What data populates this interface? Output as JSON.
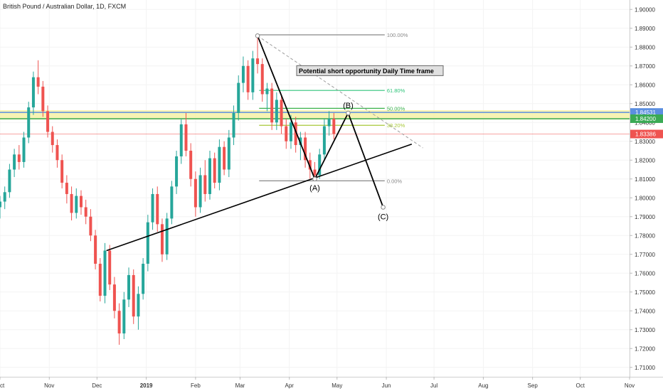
{
  "header": {
    "title": "British Pound / Australian Dollar, 1D, FXCM"
  },
  "chart_data": {
    "type": "candlestick",
    "title": "British Pound / Australian Dollar, 1D, FXCM",
    "ylim": [
      1.705,
      1.905
    ],
    "y_ticks": [
      "1.90000",
      "1.89000",
      "1.88000",
      "1.87000",
      "1.86000",
      "1.85000",
      "1.84000",
      "1.83000",
      "1.82000",
      "1.81000",
      "1.80000",
      "1.79000",
      "1.78000",
      "1.77000",
      "1.76000",
      "1.75000",
      "1.74000",
      "1.73000",
      "1.72000",
      "1.71000"
    ],
    "x_ticks": [
      "Oct",
      "Nov",
      "Dec",
      "2019",
      "Feb",
      "Mar",
      "Apr",
      "May",
      "Jun",
      "Jul",
      "Aug",
      "Sep",
      "Oct",
      "Nov"
    ],
    "x_tick_dates": [
      "2018-10-01",
      "2018-11-01",
      "2018-12-01",
      "2019-01-01",
      "2019-02-01",
      "2019-03-01",
      "2019-04-01",
      "2019-05-01",
      "2019-06-01",
      "2019-07-01",
      "2019-08-01",
      "2019-09-01",
      "2019-10-01",
      "2019-11-01"
    ],
    "xlim": [
      "2018-10-01",
      "2019-11-01"
    ],
    "price_tags": [
      {
        "value": "1.84531",
        "price": 1.84531,
        "color": "#5b8fe0"
      },
      {
        "value": "1.84200",
        "price": 1.842,
        "color": "#3aaa55"
      },
      {
        "value": "1.83386",
        "price": 1.83386,
        "color": "#ef5350"
      }
    ],
    "zones": [
      {
        "price_from": 1.8415,
        "price_to": 1.8465,
        "color": "#f6f1a6"
      },
      {
        "price": 1.84531,
        "color": "#5b8fe0"
      },
      {
        "price": 1.842,
        "color": "#3aaa55"
      }
    ],
    "current_price_line": {
      "price": 1.83386,
      "color": "#ef5350"
    },
    "fibonacci": {
      "from_date": "2019-03-13",
      "to_date": "2019-05-31",
      "levels": [
        {
          "label": "100.00%",
          "price": 1.8865,
          "color": "#888888"
        },
        {
          "label": "61.80%",
          "price": 1.857,
          "color": "#2fc47a"
        },
        {
          "label": "50.00%",
          "price": 1.8475,
          "color": "#39b14a"
        },
        {
          "label": "38.20%",
          "price": 1.8385,
          "color": "#a8c838"
        },
        {
          "label": "0.00%",
          "price": 1.809,
          "color": "#888888"
        }
      ]
    },
    "abc_pattern": [
      {
        "date": "2019-03-12",
        "price": 1.886,
        "label": ""
      },
      {
        "date": "2019-04-17",
        "price": 1.81,
        "label": "(A)"
      },
      {
        "date": "2019-05-08",
        "price": 1.845,
        "label": "(B)"
      },
      {
        "date": "2019-05-30",
        "price": 1.795,
        "label": "(C)"
      }
    ],
    "trendline": {
      "from": {
        "date": "2018-12-07",
        "price": 1.772
      },
      "to": {
        "date": "2019-06-17",
        "price": 1.8285
      }
    },
    "projection_line": {
      "from": {
        "date": "2019-03-12",
        "price": 1.886
      },
      "to": {
        "date": "2019-06-24",
        "price": 1.8265
      }
    },
    "annotation": "Potential short opportunity Daily Time frame",
    "candles": [
      {
        "date": "2018-10-01",
        "o": 1.795,
        "h": 1.801,
        "l": 1.789,
        "c": 1.798
      },
      {
        "date": "2018-10-04",
        "o": 1.798,
        "h": 1.806,
        "l": 1.794,
        "c": 1.803
      },
      {
        "date": "2018-10-07",
        "o": 1.803,
        "h": 1.818,
        "l": 1.8,
        "c": 1.815
      },
      {
        "date": "2018-10-10",
        "o": 1.815,
        "h": 1.826,
        "l": 1.811,
        "c": 1.823
      },
      {
        "date": "2018-10-13",
        "o": 1.823,
        "h": 1.828,
        "l": 1.815,
        "c": 1.819
      },
      {
        "date": "2018-10-16",
        "o": 1.819,
        "h": 1.835,
        "l": 1.816,
        "c": 1.832
      },
      {
        "date": "2018-10-19",
        "o": 1.832,
        "h": 1.851,
        "l": 1.829,
        "c": 1.848
      },
      {
        "date": "2018-10-22",
        "o": 1.848,
        "h": 1.867,
        "l": 1.844,
        "c": 1.864
      },
      {
        "date": "2018-10-25",
        "o": 1.864,
        "h": 1.873,
        "l": 1.855,
        "c": 1.859
      },
      {
        "date": "2018-10-28",
        "o": 1.859,
        "h": 1.862,
        "l": 1.843,
        "c": 1.846
      },
      {
        "date": "2018-10-31",
        "o": 1.846,
        "h": 1.849,
        "l": 1.832,
        "c": 1.835
      },
      {
        "date": "2018-11-03",
        "o": 1.835,
        "h": 1.838,
        "l": 1.824,
        "c": 1.828
      },
      {
        "date": "2018-11-06",
        "o": 1.828,
        "h": 1.831,
        "l": 1.816,
        "c": 1.82
      },
      {
        "date": "2018-11-09",
        "o": 1.82,
        "h": 1.823,
        "l": 1.805,
        "c": 1.808
      },
      {
        "date": "2018-11-12",
        "o": 1.808,
        "h": 1.812,
        "l": 1.797,
        "c": 1.802
      },
      {
        "date": "2018-11-15",
        "o": 1.802,
        "h": 1.806,
        "l": 1.788,
        "c": 1.792
      },
      {
        "date": "2018-11-18",
        "o": 1.792,
        "h": 1.805,
        "l": 1.789,
        "c": 1.801
      },
      {
        "date": "2018-11-21",
        "o": 1.801,
        "h": 1.804,
        "l": 1.791,
        "c": 1.795
      },
      {
        "date": "2018-11-24",
        "o": 1.795,
        "h": 1.799,
        "l": 1.786,
        "c": 1.79
      },
      {
        "date": "2018-11-27",
        "o": 1.79,
        "h": 1.794,
        "l": 1.777,
        "c": 1.78
      },
      {
        "date": "2018-11-30",
        "o": 1.78,
        "h": 1.783,
        "l": 1.762,
        "c": 1.765
      },
      {
        "date": "2018-12-03",
        "o": 1.765,
        "h": 1.768,
        "l": 1.745,
        "c": 1.748
      },
      {
        "date": "2018-12-06",
        "o": 1.748,
        "h": 1.776,
        "l": 1.744,
        "c": 1.772
      },
      {
        "date": "2018-12-09",
        "o": 1.772,
        "h": 1.775,
        "l": 1.751,
        "c": 1.754
      },
      {
        "date": "2018-12-12",
        "o": 1.754,
        "h": 1.758,
        "l": 1.736,
        "c": 1.74
      },
      {
        "date": "2018-12-15",
        "o": 1.74,
        "h": 1.744,
        "l": 1.722,
        "c": 1.728
      },
      {
        "date": "2018-12-18",
        "o": 1.728,
        "h": 1.75,
        "l": 1.725,
        "c": 1.746
      },
      {
        "date": "2018-12-21",
        "o": 1.746,
        "h": 1.763,
        "l": 1.742,
        "c": 1.759
      },
      {
        "date": "2018-12-24",
        "o": 1.759,
        "h": 1.762,
        "l": 1.733,
        "c": 1.737
      },
      {
        "date": "2018-12-27",
        "o": 1.737,
        "h": 1.753,
        "l": 1.73,
        "c": 1.749
      },
      {
        "date": "2018-12-30",
        "o": 1.749,
        "h": 1.768,
        "l": 1.746,
        "c": 1.765
      },
      {
        "date": "2019-01-02",
        "o": 1.765,
        "h": 1.791,
        "l": 1.761,
        "c": 1.787
      },
      {
        "date": "2019-01-05",
        "o": 1.787,
        "h": 1.805,
        "l": 1.783,
        "c": 1.802
      },
      {
        "date": "2019-01-08",
        "o": 1.802,
        "h": 1.806,
        "l": 1.782,
        "c": 1.786
      },
      {
        "date": "2019-01-11",
        "o": 1.786,
        "h": 1.789,
        "l": 1.766,
        "c": 1.77
      },
      {
        "date": "2019-01-14",
        "o": 1.77,
        "h": 1.792,
        "l": 1.767,
        "c": 1.789
      },
      {
        "date": "2019-01-17",
        "o": 1.789,
        "h": 1.809,
        "l": 1.786,
        "c": 1.806
      },
      {
        "date": "2019-01-20",
        "o": 1.806,
        "h": 1.825,
        "l": 1.802,
        "c": 1.822
      },
      {
        "date": "2019-01-23",
        "o": 1.822,
        "h": 1.842,
        "l": 1.818,
        "c": 1.839
      },
      {
        "date": "2019-01-26",
        "o": 1.839,
        "h": 1.845,
        "l": 1.822,
        "c": 1.825
      },
      {
        "date": "2019-01-29",
        "o": 1.825,
        "h": 1.829,
        "l": 1.806,
        "c": 1.81
      },
      {
        "date": "2019-02-01",
        "o": 1.81,
        "h": 1.814,
        "l": 1.79,
        "c": 1.795
      },
      {
        "date": "2019-02-04",
        "o": 1.795,
        "h": 1.816,
        "l": 1.792,
        "c": 1.812
      },
      {
        "date": "2019-02-07",
        "o": 1.812,
        "h": 1.82,
        "l": 1.798,
        "c": 1.802
      },
      {
        "date": "2019-02-10",
        "o": 1.802,
        "h": 1.825,
        "l": 1.799,
        "c": 1.821
      },
      {
        "date": "2019-02-13",
        "o": 1.821,
        "h": 1.824,
        "l": 1.805,
        "c": 1.808
      },
      {
        "date": "2019-02-16",
        "o": 1.808,
        "h": 1.831,
        "l": 1.804,
        "c": 1.827
      },
      {
        "date": "2019-02-19",
        "o": 1.827,
        "h": 1.83,
        "l": 1.812,
        "c": 1.815
      },
      {
        "date": "2019-02-22",
        "o": 1.815,
        "h": 1.836,
        "l": 1.811,
        "c": 1.832
      },
      {
        "date": "2019-02-25",
        "o": 1.832,
        "h": 1.849,
        "l": 1.828,
        "c": 1.845
      },
      {
        "date": "2019-02-28",
        "o": 1.845,
        "h": 1.865,
        "l": 1.841,
        "c": 1.861
      },
      {
        "date": "2019-03-03",
        "o": 1.861,
        "h": 1.875,
        "l": 1.856,
        "c": 1.87
      },
      {
        "date": "2019-03-06",
        "o": 1.87,
        "h": 1.873,
        "l": 1.852,
        "c": 1.856
      },
      {
        "date": "2019-03-09",
        "o": 1.856,
        "h": 1.878,
        "l": 1.852,
        "c": 1.874
      },
      {
        "date": "2019-03-12",
        "o": 1.874,
        "h": 1.886,
        "l": 1.866,
        "c": 1.871
      },
      {
        "date": "2019-03-15",
        "o": 1.871,
        "h": 1.874,
        "l": 1.851,
        "c": 1.855
      },
      {
        "date": "2019-03-18",
        "o": 1.855,
        "h": 1.861,
        "l": 1.846,
        "c": 1.858
      },
      {
        "date": "2019-03-21",
        "o": 1.858,
        "h": 1.861,
        "l": 1.836,
        "c": 1.84
      },
      {
        "date": "2019-03-24",
        "o": 1.84,
        "h": 1.856,
        "l": 1.836,
        "c": 1.852
      },
      {
        "date": "2019-03-27",
        "o": 1.852,
        "h": 1.855,
        "l": 1.834,
        "c": 1.838
      },
      {
        "date": "2019-03-30",
        "o": 1.838,
        "h": 1.842,
        "l": 1.826,
        "c": 1.83
      },
      {
        "date": "2019-04-02",
        "o": 1.83,
        "h": 1.844,
        "l": 1.826,
        "c": 1.84
      },
      {
        "date": "2019-04-05",
        "o": 1.84,
        "h": 1.843,
        "l": 1.824,
        "c": 1.828
      },
      {
        "date": "2019-04-08",
        "o": 1.828,
        "h": 1.835,
        "l": 1.82,
        "c": 1.832
      },
      {
        "date": "2019-04-11",
        "o": 1.832,
        "h": 1.835,
        "l": 1.816,
        "c": 1.82
      },
      {
        "date": "2019-04-14",
        "o": 1.82,
        "h": 1.824,
        "l": 1.81,
        "c": 1.815
      },
      {
        "date": "2019-04-17",
        "o": 1.815,
        "h": 1.819,
        "l": 1.809,
        "c": 1.812
      },
      {
        "date": "2019-04-20",
        "o": 1.812,
        "h": 1.826,
        "l": 1.81,
        "c": 1.823
      },
      {
        "date": "2019-04-23",
        "o": 1.823,
        "h": 1.842,
        "l": 1.82,
        "c": 1.838
      },
      {
        "date": "2019-04-26",
        "o": 1.838,
        "h": 1.846,
        "l": 1.833,
        "c": 1.842
      },
      {
        "date": "2019-04-29",
        "o": 1.842,
        "h": 1.845,
        "l": 1.831,
        "c": 1.834
      }
    ]
  }
}
